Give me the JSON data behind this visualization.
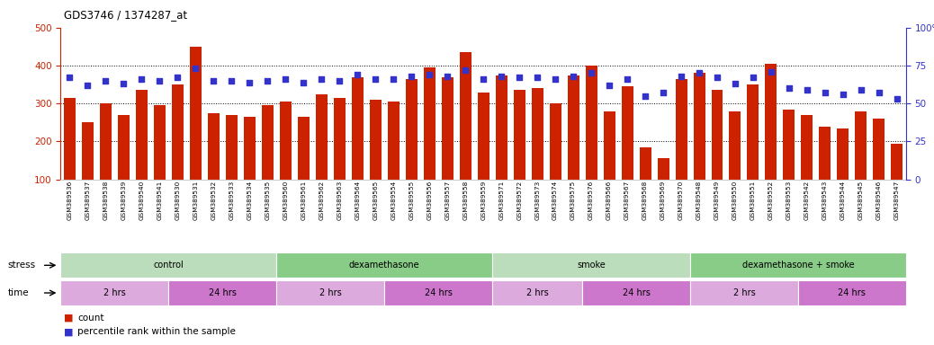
{
  "title": "GDS3746 / 1374287_at",
  "samples": [
    "GSM389536",
    "GSM389537",
    "GSM389538",
    "GSM389539",
    "GSM389540",
    "GSM389541",
    "GSM389530",
    "GSM389531",
    "GSM389532",
    "GSM389533",
    "GSM389534",
    "GSM389535",
    "GSM389560",
    "GSM389561",
    "GSM389562",
    "GSM389563",
    "GSM389564",
    "GSM389565",
    "GSM389554",
    "GSM389555",
    "GSM389556",
    "GSM389557",
    "GSM389558",
    "GSM389559",
    "GSM389571",
    "GSM389572",
    "GSM389573",
    "GSM389574",
    "GSM389575",
    "GSM389576",
    "GSM389566",
    "GSM389567",
    "GSM389568",
    "GSM389569",
    "GSM389570",
    "GSM389548",
    "GSM389549",
    "GSM389550",
    "GSM389551",
    "GSM389552",
    "GSM389553",
    "GSM389542",
    "GSM389543",
    "GSM389544",
    "GSM389545",
    "GSM389546",
    "GSM389547"
  ],
  "counts": [
    315,
    250,
    300,
    270,
    335,
    295,
    350,
    450,
    275,
    270,
    265,
    295,
    305,
    265,
    325,
    315,
    370,
    310,
    305,
    365,
    395,
    370,
    435,
    330,
    375,
    335,
    340,
    300,
    375,
    400,
    280,
    345,
    185,
    155,
    365,
    380,
    335,
    280,
    350,
    405,
    285,
    270,
    240,
    235,
    280,
    260,
    195
  ],
  "percentiles": [
    67,
    62,
    65,
    63,
    66,
    65,
    67,
    73,
    65,
    65,
    64,
    65,
    66,
    64,
    66,
    65,
    69,
    66,
    66,
    68,
    69,
    68,
    72,
    66,
    68,
    67,
    67,
    66,
    68,
    70,
    62,
    66,
    55,
    57,
    68,
    70,
    67,
    63,
    67,
    71,
    60,
    59,
    57,
    56,
    59,
    57,
    53
  ],
  "bar_color": "#cc2200",
  "dot_color": "#3333cc",
  "ylim_left": [
    100,
    500
  ],
  "ylim_right": [
    0,
    100
  ],
  "ylabel_left_color": "#cc2200",
  "ylabel_right_color": "#3333cc",
  "yticks_left": [
    100,
    200,
    300,
    400,
    500
  ],
  "yticks_right": [
    0,
    25,
    50,
    75,
    100
  ],
  "grid_lines": [
    200,
    300,
    400
  ],
  "stress_groups": [
    {
      "label": "control",
      "start": 0,
      "end": 12,
      "color": "#bbddbb"
    },
    {
      "label": "dexamethasone",
      "start": 12,
      "end": 24,
      "color": "#88cc88"
    },
    {
      "label": "smoke",
      "start": 24,
      "end": 35,
      "color": "#bbddbb"
    },
    {
      "label": "dexamethasone + smoke",
      "start": 35,
      "end": 47,
      "color": "#88cc88"
    }
  ],
  "time_groups": [
    {
      "label": "2 hrs",
      "start": 0,
      "end": 6,
      "color": "#ddaadd"
    },
    {
      "label": "24 hrs",
      "start": 6,
      "end": 12,
      "color": "#cc77cc"
    },
    {
      "label": "2 hrs",
      "start": 12,
      "end": 18,
      "color": "#ddaadd"
    },
    {
      "label": "24 hrs",
      "start": 18,
      "end": 24,
      "color": "#cc77cc"
    },
    {
      "label": "2 hrs",
      "start": 24,
      "end": 29,
      "color": "#ddaadd"
    },
    {
      "label": "24 hrs",
      "start": 29,
      "end": 35,
      "color": "#cc77cc"
    },
    {
      "label": "2 hrs",
      "start": 35,
      "end": 41,
      "color": "#ddaadd"
    },
    {
      "label": "24 hrs",
      "start": 41,
      "end": 47,
      "color": "#cc77cc"
    }
  ],
  "background_color": "#ffffff"
}
